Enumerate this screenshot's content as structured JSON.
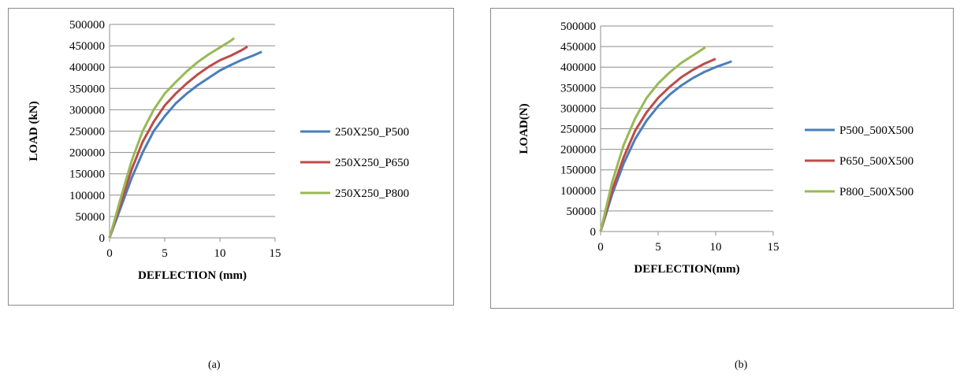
{
  "captions": [
    "(a)",
    "(b)"
  ],
  "chart_data": [
    {
      "type": "line",
      "xlabel": "DEFLECTION (mm)",
      "ylabel": "LOAD (kN)",
      "xlim": [
        0,
        15
      ],
      "ylim": [
        0,
        500000
      ],
      "x_ticks": [
        "0",
        "5",
        "10",
        "15"
      ],
      "y_ticks": [
        "0",
        "50000",
        "100000",
        "150000",
        "200000",
        "250000",
        "300000",
        "350000",
        "400000",
        "450000",
        "500000"
      ],
      "grid": true,
      "legend_position": "right",
      "series": [
        {
          "name": "250X250_P500",
          "color": "#4a7ebb",
          "x": [
            0,
            1,
            2,
            3,
            4,
            5,
            6,
            7,
            8,
            9,
            10,
            11,
            12,
            13,
            13.8
          ],
          "y": [
            0,
            70000,
            140000,
            200000,
            250000,
            285000,
            315000,
            338000,
            358000,
            375000,
            392000,
            405000,
            417000,
            427000,
            436000
          ]
        },
        {
          "name": "250X250_P650",
          "color": "#be4b48",
          "x": [
            0,
            1,
            2,
            3,
            4,
            5,
            6,
            7,
            8,
            9,
            10,
            11,
            12,
            12.5
          ],
          "y": [
            0,
            80000,
            160000,
            225000,
            272000,
            310000,
            338000,
            362000,
            383000,
            401000,
            416000,
            427000,
            440000,
            448000
          ]
        },
        {
          "name": "250X250_P800",
          "color": "#98b954",
          "x": [
            0,
            1,
            2,
            3,
            4,
            5,
            6,
            7,
            8,
            9,
            10,
            11,
            11.3
          ],
          "y": [
            0,
            92000,
            180000,
            250000,
            300000,
            338000,
            365000,
            390000,
            412000,
            430000,
            446000,
            462000,
            468000
          ]
        }
      ]
    },
    {
      "type": "line",
      "xlabel": "DEFLECTION(mm)",
      "ylabel": "LOAD(N)",
      "xlim": [
        0,
        15
      ],
      "ylim": [
        0,
        500000
      ],
      "x_ticks": [
        "0",
        "5",
        "10",
        "15"
      ],
      "y_ticks": [
        "0",
        "50000",
        "100000",
        "150000",
        "200000",
        "250000",
        "300000",
        "350000",
        "400000",
        "450000",
        "500000"
      ],
      "grid": true,
      "legend_position": "right",
      "series": [
        {
          "name": "P500_500X500",
          "color": "#4a7ebb",
          "x": [
            0,
            1,
            2,
            3,
            4,
            5,
            6,
            7,
            8,
            9,
            10,
            11,
            11.4
          ],
          "y": [
            0,
            90000,
            165000,
            225000,
            270000,
            305000,
            333000,
            355000,
            373000,
            388000,
            400000,
            410000,
            414000
          ]
        },
        {
          "name": "P650_500X500",
          "color": "#be4b48",
          "x": [
            0,
            1,
            2,
            3,
            4,
            5,
            6,
            7,
            8,
            9,
            10
          ],
          "y": [
            0,
            100000,
            180000,
            245000,
            290000,
            325000,
            352000,
            375000,
            393000,
            408000,
            420000
          ]
        },
        {
          "name": "P800_500X500",
          "color": "#98b954",
          "x": [
            0,
            1,
            2,
            3,
            4,
            5,
            6,
            7,
            8,
            9.1
          ],
          "y": [
            0,
            120000,
            210000,
            275000,
            325000,
            360000,
            387000,
            410000,
            428000,
            448000
          ]
        }
      ]
    }
  ]
}
